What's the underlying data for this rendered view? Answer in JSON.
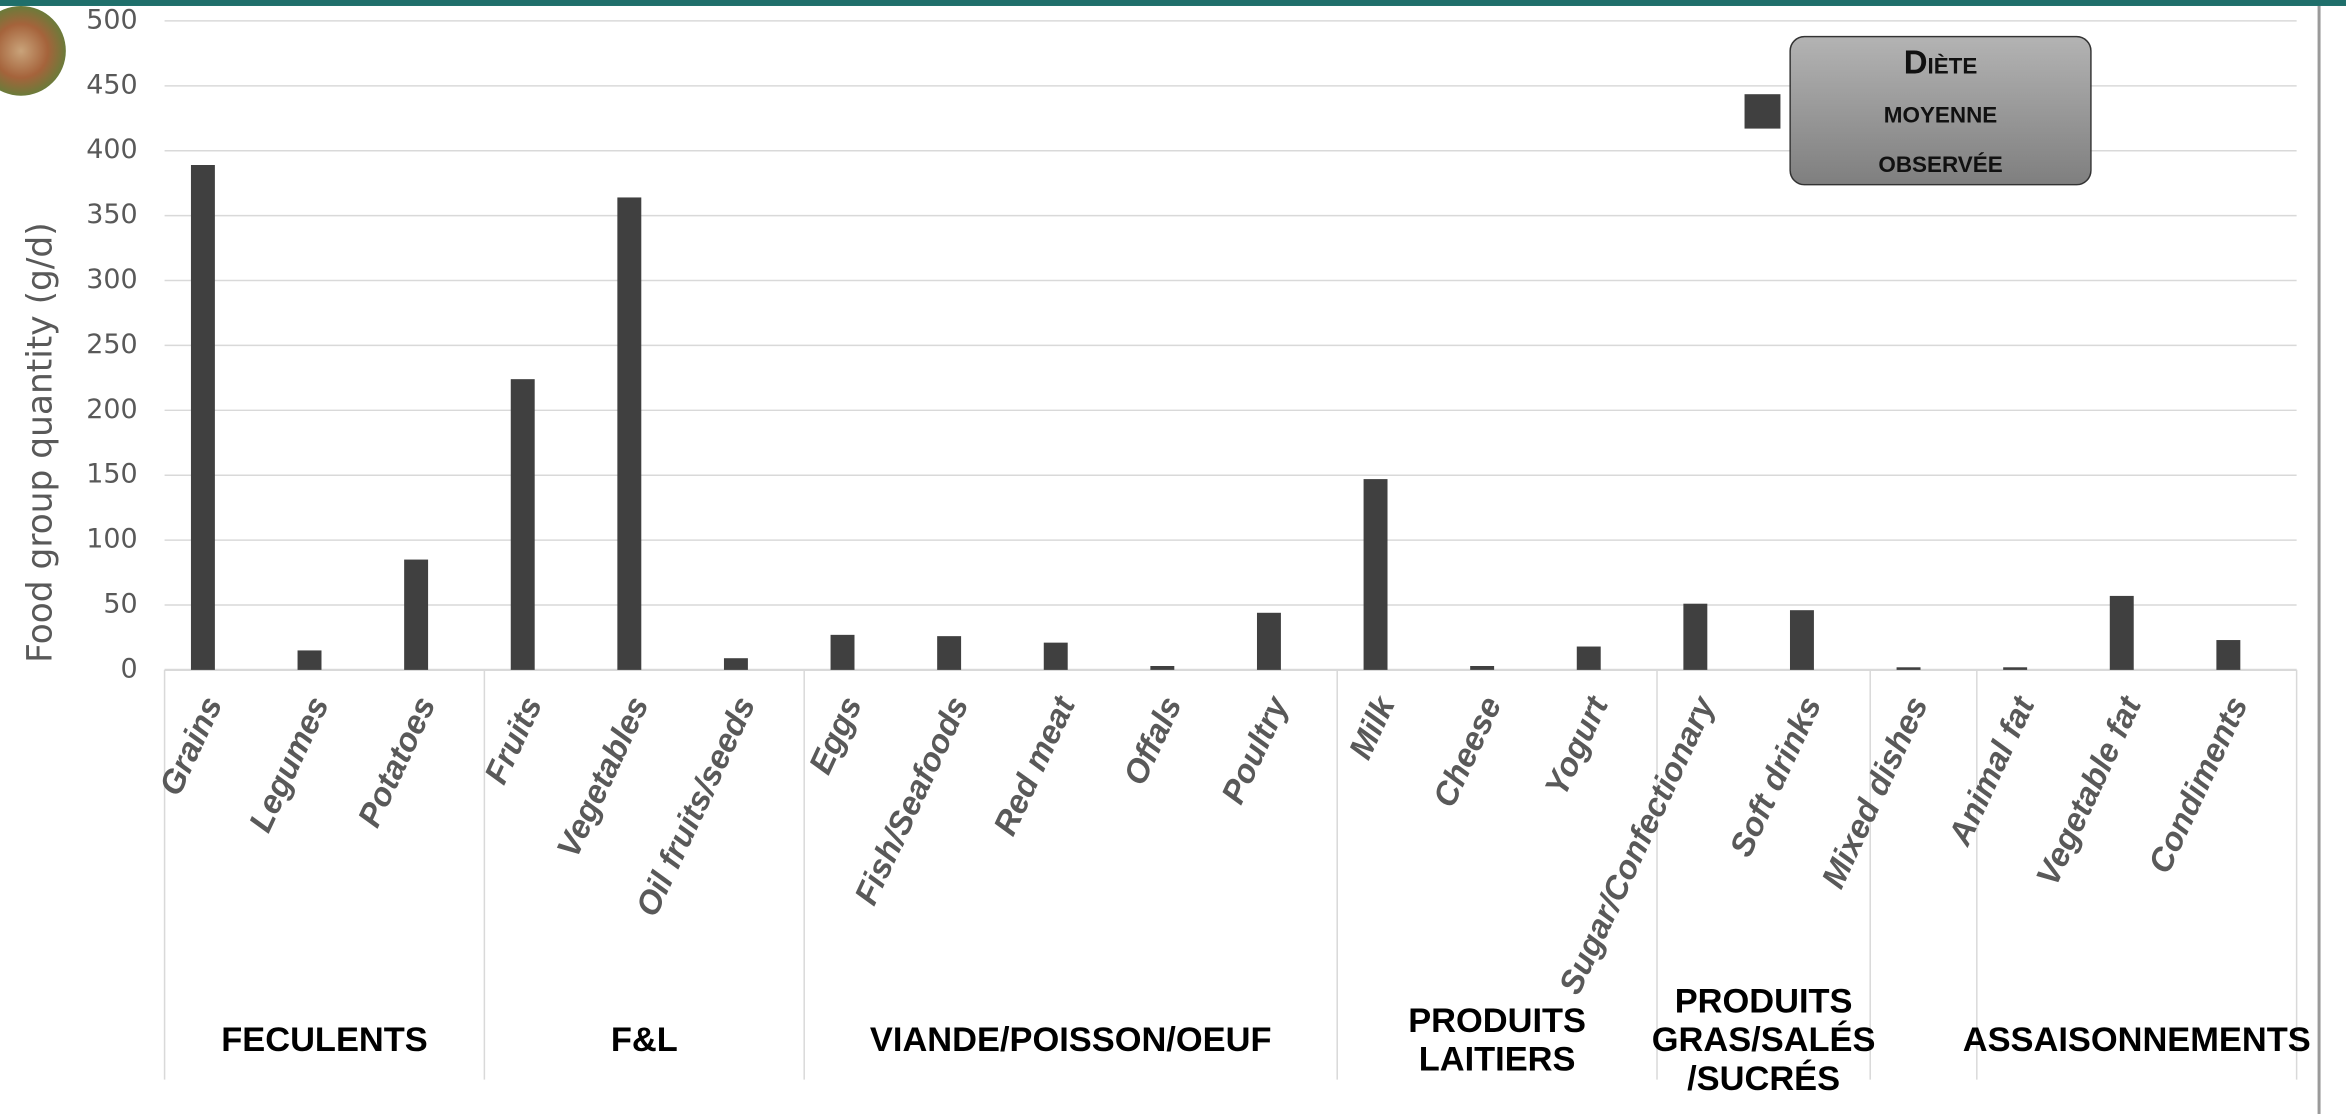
{
  "chart_data": {
    "type": "bar",
    "y_label": "Food group quantity (g/d)",
    "color": "#404040",
    "ylim": [
      0,
      500
    ],
    "yticks": [
      0,
      50,
      100,
      150,
      200,
      250,
      300,
      350,
      400,
      450,
      500
    ],
    "grid": true,
    "legend": "Diète moyenne observée",
    "groups": [
      {
        "label": "FECULENTS",
        "categories": [
          "Grains",
          "Legumes",
          "Potatoes"
        ],
        "values": [
          389,
          15,
          85
        ]
      },
      {
        "label": "F&L",
        "categories": [
          "Fruits",
          "Vegetables",
          "Oil fruits/seeds"
        ],
        "values": [
          224,
          364,
          9
        ]
      },
      {
        "label": "VIANDE/POISSON/OEUF",
        "categories": [
          "Eggs",
          "Fish/Seafoods",
          "Red meat",
          "Offals",
          "Poultry"
        ],
        "values": [
          27,
          26,
          21,
          3,
          44
        ]
      },
      {
        "label": "PRODUITS LAITIERS",
        "categories": [
          "Milk",
          "Cheese",
          "Yogurt"
        ],
        "values": [
          147,
          3,
          18
        ]
      },
      {
        "label": "PRODUITS GRAS/SALÉS /SUCRÉS",
        "categories": [
          "Sugar/Confectionary",
          "Soft drinks"
        ],
        "values": [
          51,
          46
        ]
      },
      {
        "label": null,
        "categories": [
          "Mixed dishes"
        ],
        "values": [
          2
        ]
      },
      {
        "label": "ASSAISONNEMENTS",
        "categories": [
          "Animal fat",
          "Vegetable fat",
          "Condiments"
        ],
        "values": [
          2,
          57,
          23
        ]
      }
    ]
  }
}
